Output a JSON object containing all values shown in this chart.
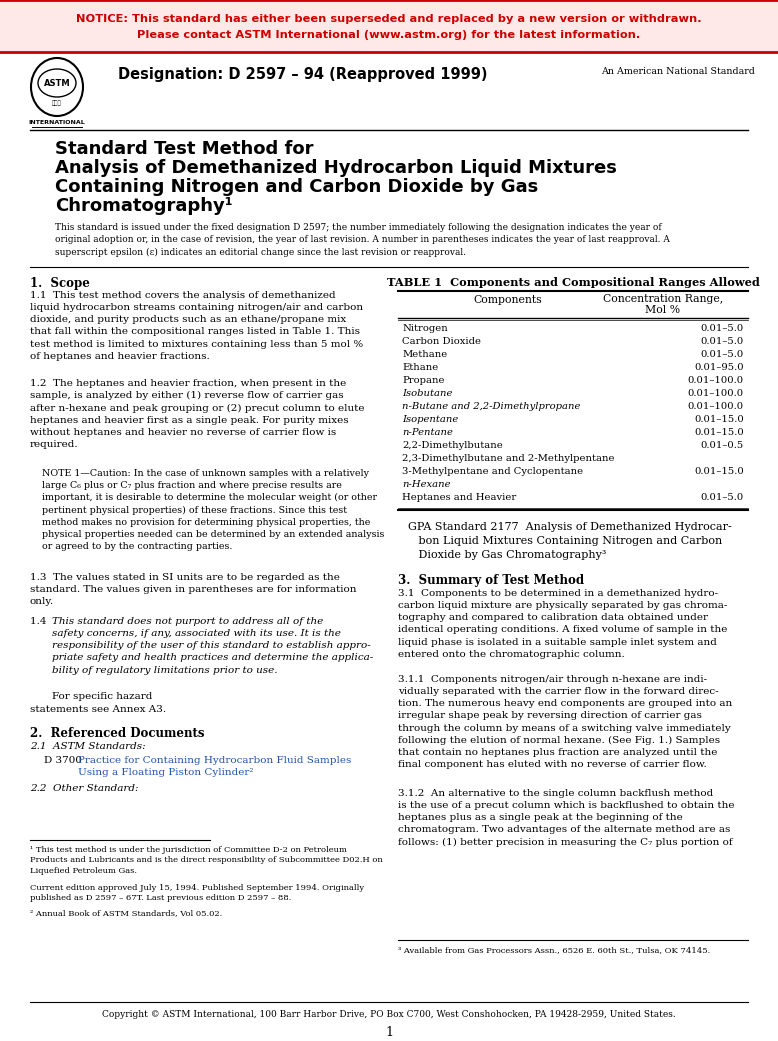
{
  "notice_text_line1": "NOTICE: This standard has either been superseded and replaced by a new version or withdrawn.",
  "notice_text_line2": "Please contact ASTM International (www.astm.org) for the latest information.",
  "notice_color": "#FF0000",
  "designation": "Designation: D 2597 – 94 (Reapproved 1999)",
  "american_national": "An American National Standard",
  "international_text": "INTERNATIONAL",
  "title_line1": "Standard Test Method for",
  "title_line2": "Analysis of Demethanized Hydrocarbon Liquid Mixtures",
  "title_line3": "Containing Nitrogen and Carbon Dioxide by Gas",
  "title_line4": "Chromatography¹",
  "table_title": "TABLE 1  Components and Compositional Ranges Allowed",
  "table_col1": "Components",
  "table_col2_line1": "Concentration Range,",
  "table_col2_line2": "Mol %",
  "table_rows": [
    [
      "Nitrogen",
      "0.01–5.0",
      false
    ],
    [
      "Carbon Dioxide",
      "0.01–5.0",
      false
    ],
    [
      "Methane",
      "0.01–5.0",
      false
    ],
    [
      "Ethane",
      "0.01–95.0",
      false
    ],
    [
      "Propane",
      "0.01–100.0",
      false
    ],
    [
      "Isobutane",
      "0.01–100.0",
      true
    ],
    [
      "n-Butane and 2,2-Dimethylpropane",
      "0.01–100.0",
      true
    ],
    [
      "Isopentane",
      "0.01–15.0",
      true
    ],
    [
      "n-Pentane",
      "0.01–15.0",
      true
    ],
    [
      "2,2-Dimethylbutane",
      "0.01–0.5",
      false
    ],
    [
      "2,3-Dimethylbutane and 2-Methylpentane",
      "",
      false
    ],
    [
      "3-Methylpentane and Cyclopentane",
      "0.01–15.0",
      false
    ],
    [
      "n-Hexane",
      "",
      true
    ],
    [
      "Heptanes and Heavier",
      "0.01–5.0",
      false
    ]
  ],
  "copyright": "Copyright © ASTM International, 100 Barr Harbor Drive, PO Box C700, West Conshohocken, PA 19428-2959, United States.",
  "page_num": "1",
  "bg_color": "#FFFFFF",
  "link_color": "#2255AA"
}
